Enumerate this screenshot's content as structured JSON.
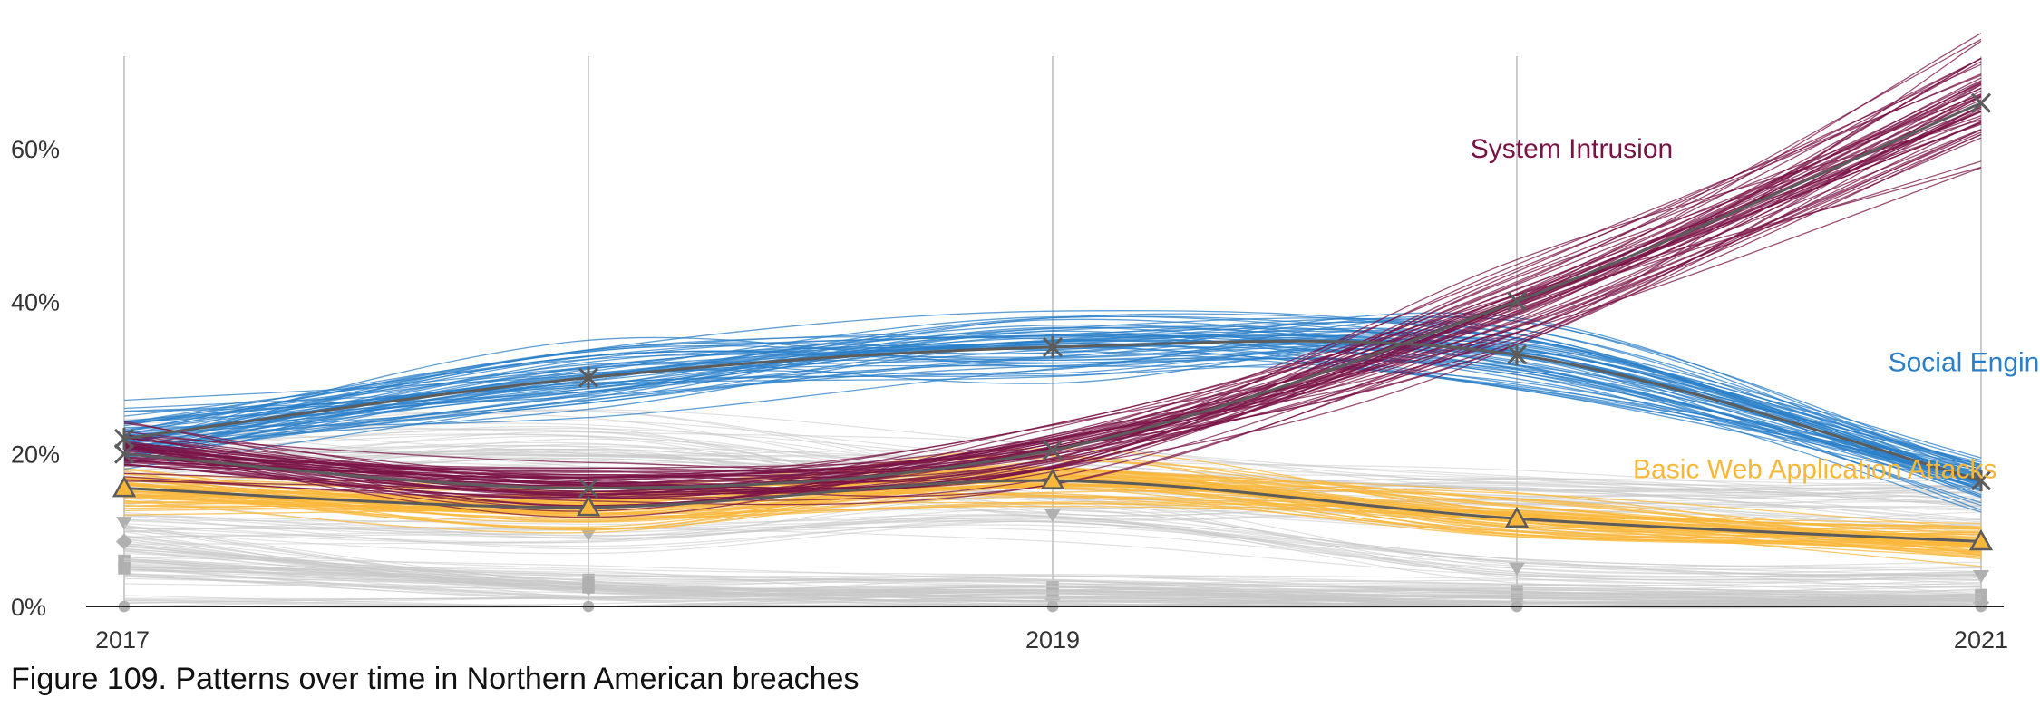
{
  "figure": {
    "caption": "Figure 109. Patterns over time in Northern American breaches"
  },
  "chart_data": {
    "type": "line",
    "x_ticks": [
      {
        "value": 2017,
        "label": "2017"
      },
      {
        "value": 2019,
        "label": "2019"
      },
      {
        "value": 2021,
        "label": "2021"
      }
    ],
    "y_ticks": [
      {
        "value": 0,
        "label": "0%"
      },
      {
        "value": 20,
        "label": "20%"
      },
      {
        "value": 40,
        "label": "40%"
      },
      {
        "value": 60,
        "label": "60%"
      }
    ],
    "xlim": [
      2017,
      2021
    ],
    "ylim": [
      0,
      70
    ],
    "vertical_gridlines_at": [
      2017,
      2018,
      2019,
      2020,
      2021
    ],
    "horizontal_gridlines": false,
    "x": [
      2017,
      2018,
      2019,
      2020,
      2021
    ],
    "series": [
      {
        "name": "System Intrusion",
        "color": "#7a1345",
        "marker": "x",
        "values": [
          20,
          15.5,
          20.5,
          40,
          66
        ],
        "label_at": [
          2019.9,
          60
        ]
      },
      {
        "name": "Social Engineering",
        "color": "#2a7fc8",
        "marker": "asterisk",
        "values": [
          22,
          30,
          34,
          33,
          16.5
        ],
        "label_at": [
          2020.8,
          32
        ]
      },
      {
        "name": "Basic Web Application Attacks",
        "color": "#f9b73a",
        "marker": "triangle",
        "values": [
          15.5,
          13,
          16.5,
          11.5,
          8.5
        ],
        "label_at": [
          2020.25,
          18
        ]
      }
    ],
    "background_series": [
      {
        "marker": "none",
        "values": [
          21,
          22.5,
          18,
          16,
          15
        ]
      },
      {
        "marker": "none",
        "values": [
          17,
          20,
          14.5,
          13,
          12
        ]
      },
      {
        "marker": "triangle-down",
        "values": [
          11,
          9.5,
          12,
          5,
          4
        ]
      },
      {
        "marker": "diamond",
        "values": [
          8.5,
          2.5,
          1,
          0.5,
          0.5
        ]
      },
      {
        "marker": "square",
        "values": [
          6,
          3.5,
          2.5,
          2,
          1.5
        ]
      },
      {
        "marker": "square",
        "values": [
          5,
          2.5,
          1.5,
          1,
          1
        ]
      },
      {
        "marker": "circle",
        "values": [
          0,
          0,
          0,
          0,
          0
        ]
      }
    ],
    "mean_line_color": "#5c5c5c",
    "background_color": "#c9c9c9",
    "gridline_color": "#cccccc"
  }
}
